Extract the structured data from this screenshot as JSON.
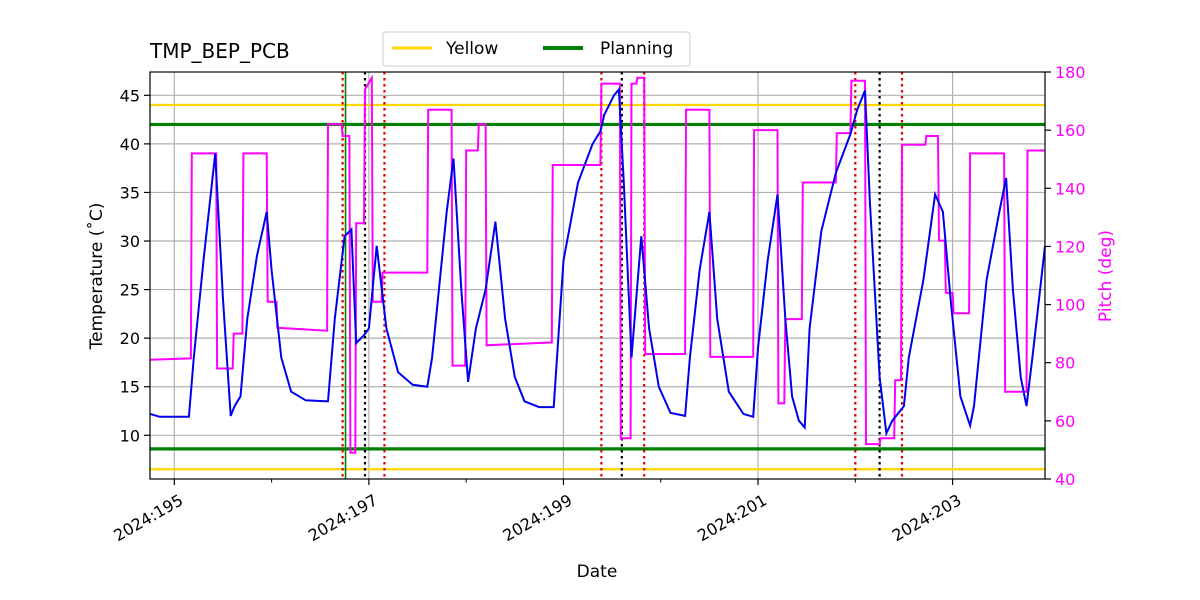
{
  "chart_data": {
    "type": "line",
    "title": "TMP_BEP_PCB",
    "xlabel": "Date",
    "ylabel": "Temperature ($^\\circ$C)",
    "ylabel_display": "Temperature (˚C)",
    "y2label": "Pitch (deg)",
    "xlim": [
      194.75,
      203.95
    ],
    "ylim": [
      5.5,
      47.4
    ],
    "y2lim": [
      40,
      180
    ],
    "x_major_ticks": [
      195,
      197,
      199,
      201,
      203
    ],
    "x_tick_labels": [
      "2024:195",
      "2024:197",
      "2024:199",
      "2024:201",
      "2024:203"
    ],
    "x_minor_ticks": [
      196,
      198,
      200,
      202
    ],
    "y_ticks": [
      10,
      15,
      20,
      25,
      30,
      35,
      40,
      45
    ],
    "y_tick_labels": [
      "10",
      "15",
      "20",
      "25",
      "30",
      "35",
      "40",
      "45"
    ],
    "y2_ticks": [
      40,
      60,
      80,
      100,
      120,
      140,
      160,
      180
    ],
    "y2_tick_labels": [
      "40",
      "60",
      "80",
      "100",
      "120",
      "140",
      "160",
      "180"
    ],
    "grid": true,
    "legend": {
      "position": "top-center-outside",
      "entries": [
        {
          "name": "Yellow",
          "color": "#ffd700"
        },
        {
          "name": "Planning",
          "color": "#008000"
        }
      ]
    },
    "limits": {
      "yellow": [
        6.5,
        44.0
      ],
      "planning": [
        8.6,
        42.0
      ]
    },
    "colors": {
      "temperature": "#0000ee",
      "pitch": "#ff00ff",
      "yellow": "#ffd700",
      "planning": "#008000",
      "red_marker": "#e00000",
      "black_marker": "#000000",
      "grid": "#b0b0b0"
    },
    "vertical_markers": {
      "red": [
        196.73,
        197.16,
        199.39,
        199.83,
        202.0,
        202.48
      ],
      "black": [
        196.96,
        199.6,
        202.25
      ],
      "green": [
        196.76
      ]
    },
    "series": [
      {
        "name": "Temperature",
        "axis": "left",
        "color": "#0000ee",
        "points": [
          [
            194.75,
            12.2
          ],
          [
            194.85,
            11.9
          ],
          [
            195.0,
            11.9
          ],
          [
            195.15,
            11.9
          ],
          [
            195.2,
            18.0
          ],
          [
            195.3,
            28.0
          ],
          [
            195.42,
            39.0
          ],
          [
            195.5,
            24.0
          ],
          [
            195.58,
            12.0
          ],
          [
            195.62,
            13.0
          ],
          [
            195.68,
            14.0
          ],
          [
            195.75,
            22.0
          ],
          [
            195.85,
            28.5
          ],
          [
            195.95,
            33.0
          ],
          [
            196.0,
            27.0
          ],
          [
            196.1,
            18.0
          ],
          [
            196.2,
            14.5
          ],
          [
            196.35,
            13.6
          ],
          [
            196.55,
            13.5
          ],
          [
            196.58,
            13.5
          ],
          [
            196.65,
            22.0
          ],
          [
            196.75,
            30.5
          ],
          [
            196.82,
            31.2
          ],
          [
            196.87,
            19.5
          ],
          [
            196.95,
            20.3
          ],
          [
            197.0,
            21.0
          ],
          [
            197.08,
            29.5
          ],
          [
            197.18,
            21.0
          ],
          [
            197.3,
            16.5
          ],
          [
            197.45,
            15.2
          ],
          [
            197.6,
            15.0
          ],
          [
            197.65,
            18.0
          ],
          [
            197.72,
            25.0
          ],
          [
            197.8,
            33.0
          ],
          [
            197.87,
            38.5
          ],
          [
            197.95,
            25.0
          ],
          [
            198.02,
            15.5
          ],
          [
            198.1,
            21.0
          ],
          [
            198.2,
            25.0
          ],
          [
            198.3,
            32.0
          ],
          [
            198.4,
            22.0
          ],
          [
            198.5,
            16.0
          ],
          [
            198.6,
            13.5
          ],
          [
            198.75,
            12.9
          ],
          [
            198.9,
            12.9
          ],
          [
            199.0,
            28.0
          ],
          [
            199.15,
            36.0
          ],
          [
            199.3,
            40.0
          ],
          [
            199.38,
            41.3
          ],
          [
            199.42,
            43.0
          ],
          [
            199.52,
            45.0
          ],
          [
            199.57,
            45.6
          ],
          [
            199.62,
            36.0
          ],
          [
            199.7,
            18.0
          ],
          [
            199.8,
            30.5
          ],
          [
            199.88,
            21.0
          ],
          [
            199.98,
            15.0
          ],
          [
            200.1,
            12.3
          ],
          [
            200.25,
            12.0
          ],
          [
            200.3,
            18.0
          ],
          [
            200.4,
            27.0
          ],
          [
            200.5,
            33.0
          ],
          [
            200.58,
            22.0
          ],
          [
            200.7,
            14.5
          ],
          [
            200.85,
            12.2
          ],
          [
            200.95,
            11.9
          ],
          [
            201.0,
            19.0
          ],
          [
            201.1,
            28.0
          ],
          [
            201.2,
            34.8
          ],
          [
            201.28,
            22.0
          ],
          [
            201.35,
            14.0
          ],
          [
            201.42,
            11.5
          ],
          [
            201.48,
            10.8
          ],
          [
            201.53,
            21.0
          ],
          [
            201.65,
            31.0
          ],
          [
            201.8,
            37.0
          ],
          [
            201.95,
            41.0
          ],
          [
            202.02,
            43.5
          ],
          [
            202.1,
            45.5
          ],
          [
            202.15,
            34.0
          ],
          [
            202.25,
            16.0
          ],
          [
            202.32,
            10.2
          ],
          [
            202.38,
            11.5
          ],
          [
            202.5,
            13.0
          ],
          [
            202.55,
            18.0
          ],
          [
            202.7,
            26.0
          ],
          [
            202.82,
            34.8
          ],
          [
            202.9,
            33.0
          ],
          [
            202.98,
            24.0
          ],
          [
            203.08,
            14.0
          ],
          [
            203.18,
            11.0
          ],
          [
            203.22,
            13.0
          ],
          [
            203.35,
            26.0
          ],
          [
            203.48,
            33.0
          ],
          [
            203.55,
            36.5
          ],
          [
            203.62,
            25.0
          ],
          [
            203.7,
            16.0
          ],
          [
            203.76,
            13.0
          ],
          [
            203.82,
            18.0
          ],
          [
            203.9,
            25.0
          ],
          [
            203.95,
            29.5
          ]
        ]
      },
      {
        "name": "Pitch",
        "axis": "right",
        "color": "#ff00ff",
        "points": [
          [
            194.75,
            81
          ],
          [
            195.17,
            81.5
          ],
          [
            195.18,
            152
          ],
          [
            195.43,
            152
          ],
          [
            195.44,
            78
          ],
          [
            195.6,
            78
          ],
          [
            195.61,
            90
          ],
          [
            195.7,
            90
          ],
          [
            195.71,
            152
          ],
          [
            195.95,
            152
          ],
          [
            195.96,
            101
          ],
          [
            196.05,
            101
          ],
          [
            196.06,
            92
          ],
          [
            196.57,
            91
          ],
          [
            196.58,
            162
          ],
          [
            196.72,
            162
          ],
          [
            196.73,
            158
          ],
          [
            196.8,
            158
          ],
          [
            196.81,
            49
          ],
          [
            196.86,
            49
          ],
          [
            196.87,
            128
          ],
          [
            196.95,
            128
          ],
          [
            196.96,
            174
          ],
          [
            197.03,
            178
          ],
          [
            197.04,
            101
          ],
          [
            197.13,
            101
          ],
          [
            197.14,
            111
          ],
          [
            197.6,
            111
          ],
          [
            197.61,
            167
          ],
          [
            197.85,
            167
          ],
          [
            197.86,
            79
          ],
          [
            197.99,
            79
          ],
          [
            198.0,
            153
          ],
          [
            198.12,
            153
          ],
          [
            198.13,
            162
          ],
          [
            198.2,
            162
          ],
          [
            198.21,
            86
          ],
          [
            198.88,
            87
          ],
          [
            198.89,
            148
          ],
          [
            199.38,
            148
          ],
          [
            199.39,
            176
          ],
          [
            199.58,
            176
          ],
          [
            199.59,
            54
          ],
          [
            199.69,
            54
          ],
          [
            199.7,
            176
          ],
          [
            199.75,
            176
          ],
          [
            199.76,
            178
          ],
          [
            199.83,
            178
          ],
          [
            199.84,
            83
          ],
          [
            200.25,
            83
          ],
          [
            200.26,
            167
          ],
          [
            200.5,
            167
          ],
          [
            200.51,
            82
          ],
          [
            200.95,
            82
          ],
          [
            200.96,
            160
          ],
          [
            201.2,
            160
          ],
          [
            201.21,
            66
          ],
          [
            201.27,
            66
          ],
          [
            201.28,
            95
          ],
          [
            201.45,
            95
          ],
          [
            201.46,
            142
          ],
          [
            201.8,
            142
          ],
          [
            201.81,
            159
          ],
          [
            201.95,
            159
          ],
          [
            201.96,
            177
          ],
          [
            202.1,
            177
          ],
          [
            202.11,
            52
          ],
          [
            202.25,
            52
          ],
          [
            202.26,
            54
          ],
          [
            202.4,
            54
          ],
          [
            202.41,
            74
          ],
          [
            202.47,
            74
          ],
          [
            202.48,
            155
          ],
          [
            202.72,
            155
          ],
          [
            202.73,
            158
          ],
          [
            202.85,
            158
          ],
          [
            202.86,
            122
          ],
          [
            202.92,
            122
          ],
          [
            202.93,
            104
          ],
          [
            203.0,
            104
          ],
          [
            203.01,
            97
          ],
          [
            203.17,
            97
          ],
          [
            203.18,
            152
          ],
          [
            203.53,
            152
          ],
          [
            203.54,
            70
          ],
          [
            203.76,
            70
          ],
          [
            203.77,
            153
          ],
          [
            203.95,
            153
          ]
        ]
      }
    ]
  }
}
